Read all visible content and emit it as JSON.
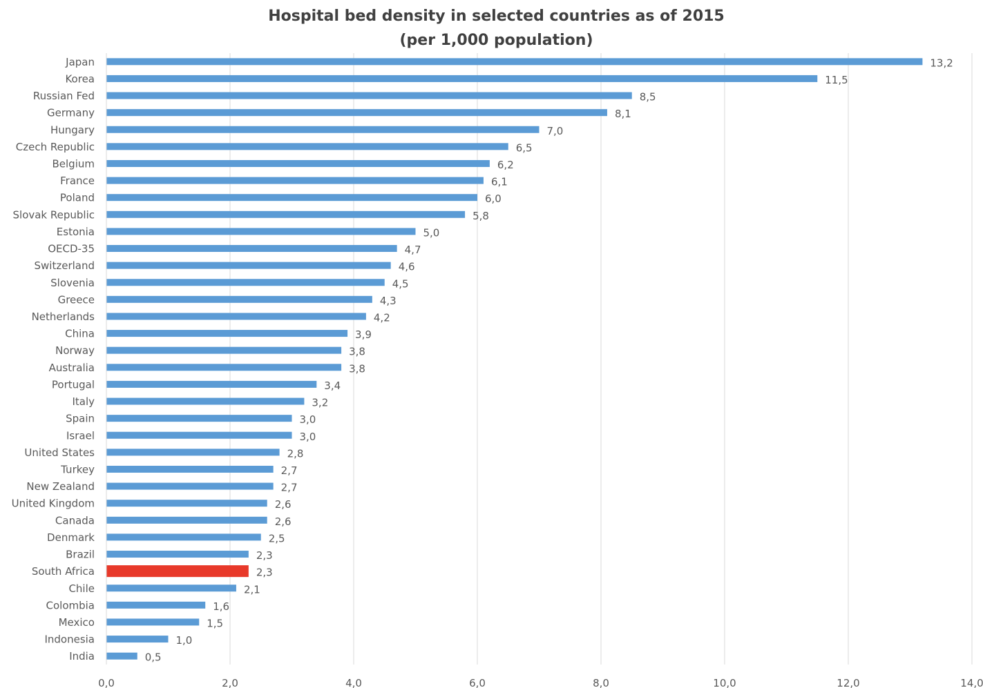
{
  "chart_data": {
    "type": "bar",
    "orientation": "horizontal",
    "title": "Hospital bed density in selected countries as of 2015",
    "subtitle": "(per 1,000 population)",
    "xlabel": "",
    "ylabel": "",
    "xlim": [
      0,
      14
    ],
    "x_ticks": [
      "0,0",
      "2,0",
      "4,0",
      "6,0",
      "8,0",
      "10,0",
      "12,0",
      "14,0"
    ],
    "grid": "vertical",
    "legend": "none",
    "bar_color": "#5B9BD5",
    "highlight_color": "#E8392A",
    "highlight_category": "South Africa",
    "categories": [
      "Japan",
      "Korea",
      "Russian Fed",
      "Germany",
      "Hungary",
      "Czech Republic",
      "Belgium",
      "France",
      "Poland",
      "Slovak Republic",
      "Estonia",
      "OECD-35",
      "Switzerland",
      "Slovenia",
      "Greece",
      "Netherlands",
      "China",
      "Norway",
      "Australia",
      "Portugal",
      "Italy",
      "Spain",
      "Israel",
      "United States",
      "Turkey",
      "New Zealand",
      "United Kingdom",
      "Canada",
      "Denmark",
      "Brazil",
      "South Africa",
      "Chile",
      "Colombia",
      "Mexico",
      "Indonesia",
      "India"
    ],
    "values": [
      13.2,
      11.5,
      8.5,
      8.1,
      7.0,
      6.5,
      6.2,
      6.1,
      6.0,
      5.8,
      5.0,
      4.7,
      4.6,
      4.5,
      4.3,
      4.2,
      3.9,
      3.8,
      3.8,
      3.4,
      3.2,
      3.0,
      3.0,
      2.8,
      2.7,
      2.7,
      2.6,
      2.6,
      2.5,
      2.3,
      2.3,
      2.1,
      1.6,
      1.5,
      1.0,
      0.5
    ],
    "value_labels": [
      "13,2",
      "11,5",
      "8,5",
      "8,1",
      "7,0",
      "6,5",
      "6,2",
      "6,1",
      "6,0",
      "5,8",
      "5,0",
      "4,7",
      "4,6",
      "4,5",
      "4,3",
      "4,2",
      "3,9",
      "3,8",
      "3,8",
      "3,4",
      "3,2",
      "3,0",
      "3,0",
      "2,8",
      "2,7",
      "2,7",
      "2,6",
      "2,6",
      "2,5",
      "2,3",
      "2,3",
      "2,1",
      "1,6",
      "1,5",
      "1,0",
      "0,5"
    ]
  }
}
